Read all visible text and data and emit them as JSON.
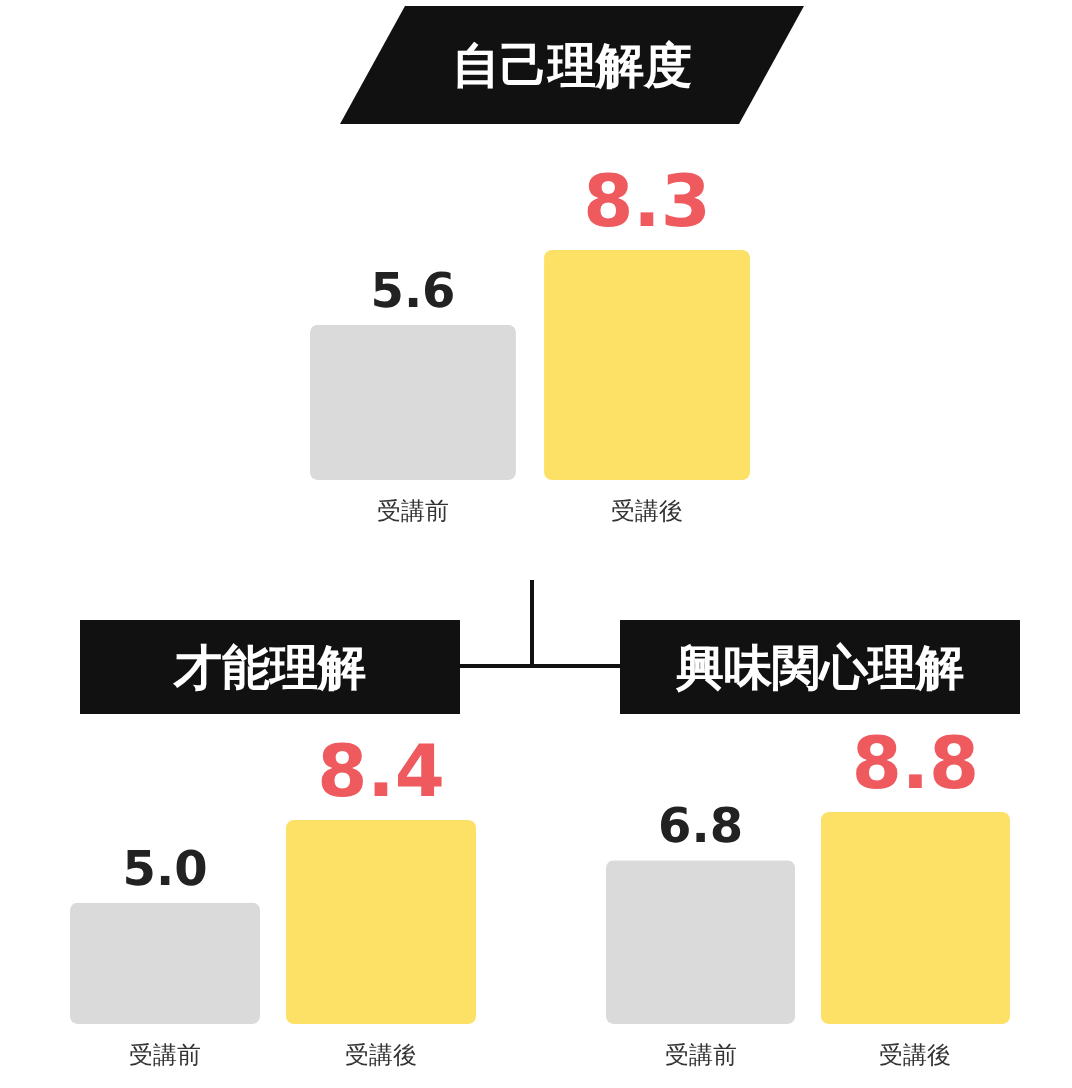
{
  "chart_data": [
    {
      "type": "bar",
      "title": "自己理解度",
      "categories": [
        "受講前",
        "受講後"
      ],
      "values": [
        5.6,
        8.3
      ],
      "colors": [
        "#dadada",
        "#fde166"
      ],
      "value_labels": [
        "5.6",
        "8.3"
      ]
    },
    {
      "type": "bar",
      "title": "才能理解",
      "categories": [
        "受講前",
        "受講後"
      ],
      "values": [
        5.0,
        8.4
      ],
      "colors": [
        "#dadada",
        "#fde166"
      ],
      "value_labels": [
        "5.0",
        "8.4"
      ]
    },
    {
      "type": "bar",
      "title": "興味関心理解",
      "categories": [
        "受講前",
        "受講後"
      ],
      "values": [
        6.8,
        8.8
      ],
      "colors": [
        "#dadada",
        "#fde166"
      ],
      "value_labels": [
        "6.8",
        "8.8"
      ]
    }
  ]
}
